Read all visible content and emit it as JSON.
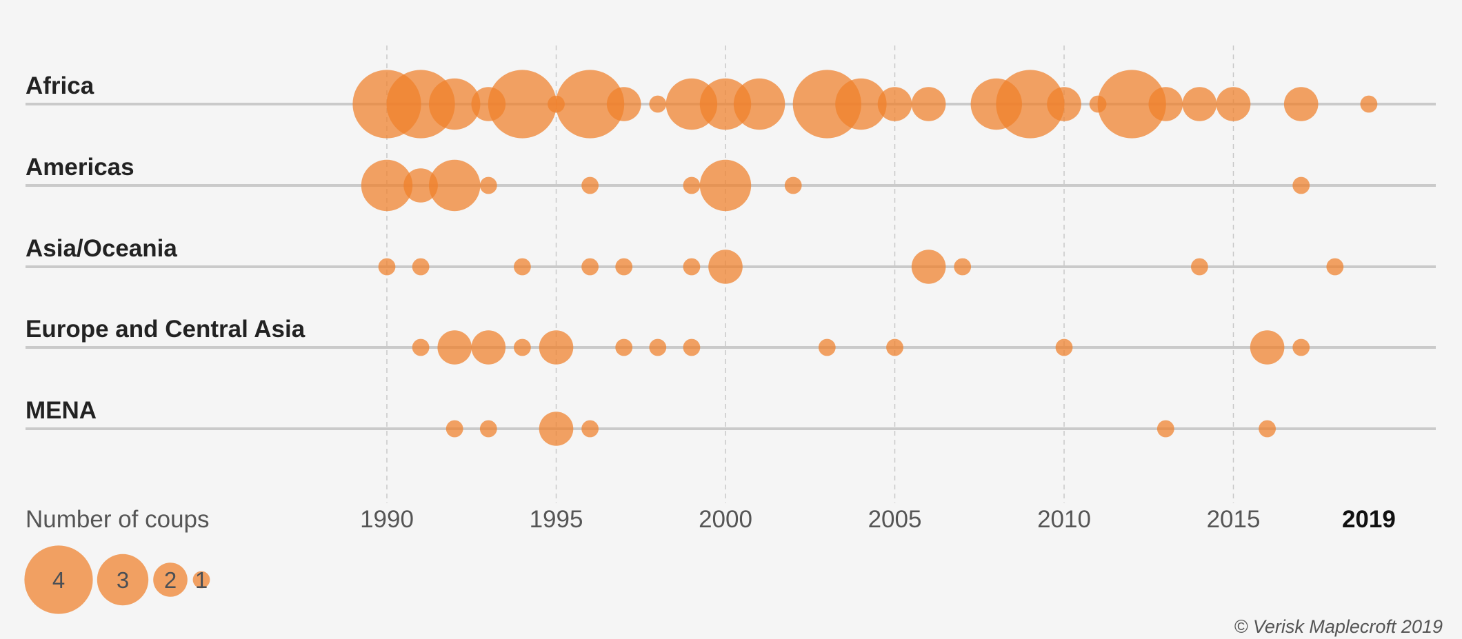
{
  "chart_data": {
    "type": "scatter",
    "subtype": "bubble-timeline",
    "xlim": [
      1990,
      2019
    ],
    "x_ticks": [
      "1990",
      "1995",
      "2000",
      "2005",
      "2010",
      "2015",
      "2019"
    ],
    "grid": "vertical dashed at 5-year ticks",
    "bubble_color": "#f07f2a",
    "size_legend": {
      "title": "Number of coups",
      "values": [
        4,
        3,
        2,
        1
      ]
    },
    "rows": [
      {
        "name": "Africa",
        "points": [
          [
            1990,
            4
          ],
          [
            1991,
            4
          ],
          [
            1992,
            3
          ],
          [
            1993,
            2
          ],
          [
            1994,
            4
          ],
          [
            1995,
            1
          ],
          [
            1996,
            4
          ],
          [
            1997,
            2
          ],
          [
            1998,
            1
          ],
          [
            1999,
            3
          ],
          [
            2000,
            3
          ],
          [
            2001,
            3
          ],
          [
            2003,
            4
          ],
          [
            2004,
            3
          ],
          [
            2005,
            2
          ],
          [
            2006,
            2
          ],
          [
            2008,
            3
          ],
          [
            2009,
            4
          ],
          [
            2010,
            2
          ],
          [
            2011,
            1
          ],
          [
            2012,
            4
          ],
          [
            2013,
            2
          ],
          [
            2014,
            2
          ],
          [
            2015,
            2
          ],
          [
            2017,
            2
          ],
          [
            2019,
            1
          ]
        ]
      },
      {
        "name": "Americas",
        "points": [
          [
            1990,
            3
          ],
          [
            1991,
            2
          ],
          [
            1992,
            3
          ],
          [
            1993,
            1
          ],
          [
            1996,
            1
          ],
          [
            1999,
            1
          ],
          [
            2000,
            3
          ],
          [
            2002,
            1
          ],
          [
            2017,
            1
          ]
        ]
      },
      {
        "name": "Asia/Oceania",
        "points": [
          [
            1990,
            1
          ],
          [
            1991,
            1
          ],
          [
            1994,
            1
          ],
          [
            1996,
            1
          ],
          [
            1997,
            1
          ],
          [
            1999,
            1
          ],
          [
            2000,
            2
          ],
          [
            2006,
            2
          ],
          [
            2007,
            1
          ],
          [
            2014,
            1
          ],
          [
            2018,
            1
          ]
        ]
      },
      {
        "name": "Europe and Central Asia",
        "points": [
          [
            1991,
            1
          ],
          [
            1992,
            2
          ],
          [
            1993,
            2
          ],
          [
            1994,
            1
          ],
          [
            1995,
            2
          ],
          [
            1997,
            1
          ],
          [
            1998,
            1
          ],
          [
            1999,
            1
          ],
          [
            2003,
            1
          ],
          [
            2005,
            1
          ],
          [
            2010,
            1
          ],
          [
            2016,
            2
          ],
          [
            2017,
            1
          ]
        ]
      },
      {
        "name": "MENA",
        "points": [
          [
            1992,
            1
          ],
          [
            1993,
            1
          ],
          [
            1995,
            2
          ],
          [
            1996,
            1
          ],
          [
            2013,
            1
          ],
          [
            2016,
            1
          ]
        ]
      }
    ]
  },
  "credit": "© Verisk Maplecroft 2019"
}
